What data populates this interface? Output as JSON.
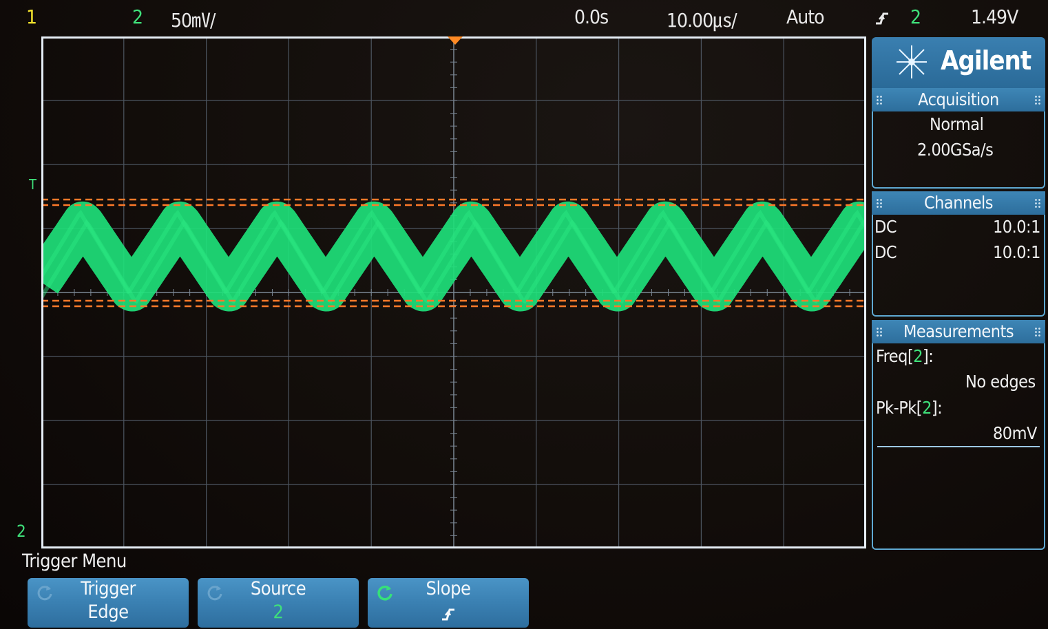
{
  "status_bar": {
    "ch1_label": "1",
    "ch2_label": "2",
    "vertical_scale": "50㎷/",
    "time_offset": "0.0s",
    "time_scale": "10.00㎲/",
    "trigger_mode": "Auto",
    "trigger_slope_icon": "rising-edge-icon",
    "trigger_source": "2",
    "trigger_level": "1.49V"
  },
  "brand": {
    "logo_text": "Agilent",
    "logo_icon": "agilent-spark-icon"
  },
  "acquisition": {
    "header": "Acquisition",
    "mode": "Normal",
    "sample_rate": "2.00GSa/s"
  },
  "channels": {
    "header": "Channels",
    "rows": [
      {
        "coupling": "DC",
        "probe": "10.0:1",
        "color": "#f2e22c"
      },
      {
        "coupling": "DC",
        "probe": "10.0:1",
        "color": "#3fe07a"
      }
    ]
  },
  "measurements": {
    "header": "Measurements",
    "items": [
      {
        "name": "Freq",
        "channel": "2",
        "value": "No edges"
      },
      {
        "name": "Pk-Pk",
        "channel": "2",
        "value": "80mV"
      }
    ]
  },
  "markers": {
    "trigger_level_marker": "T",
    "ch2_ground_marker": "2"
  },
  "menu": {
    "title": "Trigger Menu",
    "softkeys": [
      {
        "line1": "Trigger",
        "line2": "Edge"
      },
      {
        "line1": "Source",
        "line2": "2"
      },
      {
        "line1": "Slope",
        "line2": "↑"
      }
    ]
  },
  "colors": {
    "trace": "#1ee07a",
    "cursor": "#ff7a2a",
    "ui_blue": "#3a80b2"
  }
}
